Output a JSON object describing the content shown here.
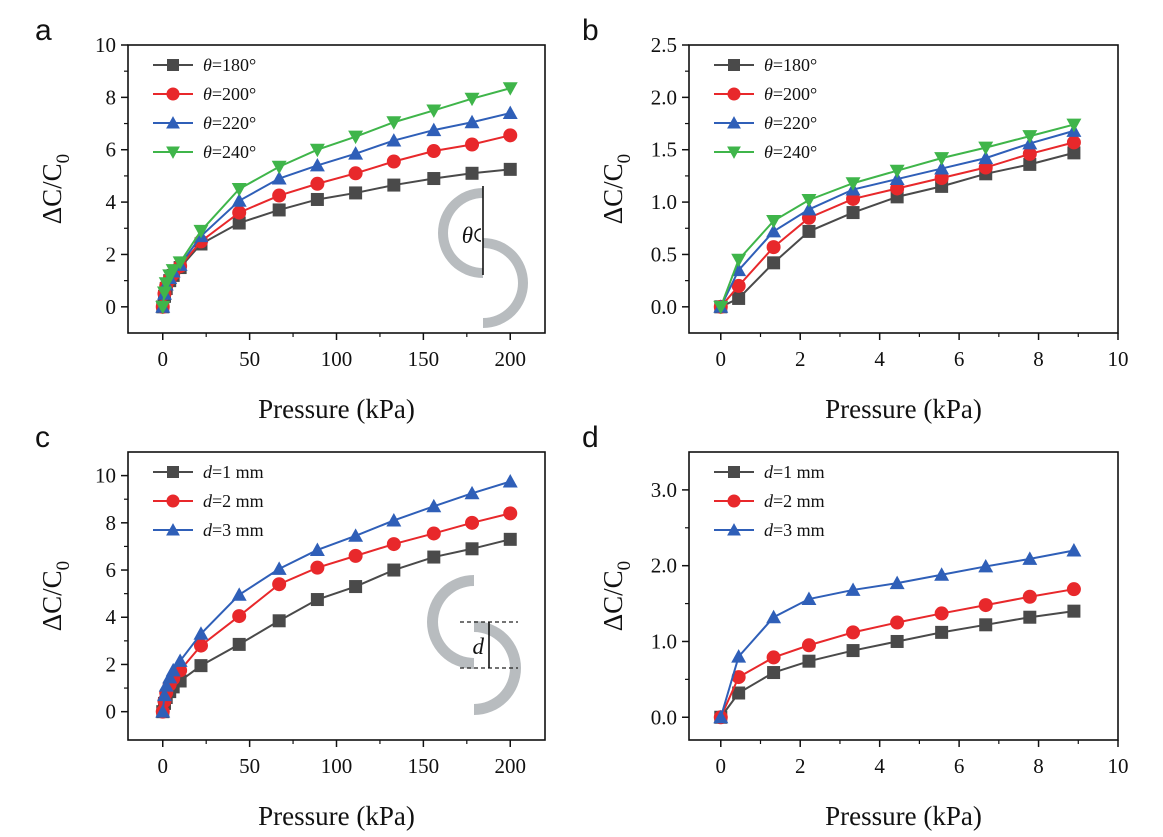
{
  "chart_data": [
    {
      "panel": "a",
      "type": "line",
      "xlabel": "Pressure (kPa)",
      "ylabel_main": "ΔC/C",
      "ylabel_sub": "0",
      "xlim": [
        -20,
        220
      ],
      "ylim": [
        -1,
        10
      ],
      "xticks": [
        0,
        50,
        100,
        150,
        200
      ],
      "xtick_labels": [
        "0",
        "50",
        "100",
        "150",
        "200"
      ],
      "yticks": [
        0,
        2,
        4,
        6,
        8,
        10
      ],
      "ytick_labels": [
        "0",
        "2",
        "4",
        "6",
        "8",
        "10"
      ],
      "legend_prefix": "θ",
      "legend_italic_prefix": true,
      "legend_position": "top-left",
      "series": [
        {
          "name": "θ=180°",
          "suffix": "=180°",
          "color": "#4a4a4a",
          "marker": "square",
          "x": [
            0,
            1,
            2,
            4,
            6,
            10,
            22,
            44,
            67,
            89,
            111,
            133,
            156,
            178,
            200
          ],
          "y": [
            0,
            0.4,
            0.7,
            1.0,
            1.2,
            1.5,
            2.4,
            3.2,
            3.7,
            4.1,
            4.35,
            4.65,
            4.9,
            5.1,
            5.25
          ]
        },
        {
          "name": "θ=200°",
          "suffix": "=200°",
          "color": "#e8282b",
          "marker": "circle",
          "x": [
            0,
            1,
            2,
            4,
            6,
            10,
            22,
            44,
            67,
            89,
            111,
            133,
            156,
            178,
            200
          ],
          "y": [
            0,
            0.5,
            0.8,
            1.05,
            1.25,
            1.55,
            2.5,
            3.6,
            4.25,
            4.7,
            5.1,
            5.55,
            5.95,
            6.2,
            6.55
          ]
        },
        {
          "name": "θ=220°",
          "suffix": "=220°",
          "color": "#2f5fb8",
          "marker": "triangle-up",
          "x": [
            0,
            1,
            2,
            4,
            6,
            10,
            22,
            44,
            67,
            89,
            111,
            133,
            156,
            178,
            200
          ],
          "y": [
            0,
            0.5,
            0.85,
            1.1,
            1.35,
            1.6,
            2.7,
            4.05,
            4.9,
            5.4,
            5.85,
            6.35,
            6.75,
            7.05,
            7.4
          ]
        },
        {
          "name": "θ=240°",
          "suffix": "=240°",
          "color": "#3fb54a",
          "marker": "triangle-down",
          "x": [
            0,
            1,
            2,
            4,
            6,
            10,
            22,
            44,
            67,
            89,
            111,
            133,
            156,
            178,
            200
          ],
          "y": [
            0,
            0.55,
            0.9,
            1.2,
            1.4,
            1.7,
            2.9,
            4.5,
            5.35,
            6.0,
            6.5,
            7.05,
            7.5,
            7.95,
            8.35
          ]
        }
      ],
      "inset": {
        "kind": "theta",
        "label": "θ"
      }
    },
    {
      "panel": "b",
      "type": "line",
      "xlabel": "Pressure (kPa)",
      "ylabel_main": "ΔC/C",
      "ylabel_sub": "0",
      "xlim": [
        -0.8,
        10
      ],
      "ylim": [
        -0.25,
        2.5
      ],
      "xticks": [
        0,
        2,
        4,
        6,
        8,
        10
      ],
      "xtick_labels": [
        "0",
        "2",
        "4",
        "6",
        "8",
        "10"
      ],
      "yticks": [
        0,
        0.5,
        1.0,
        1.5,
        2.0,
        2.5
      ],
      "ytick_labels": [
        "0.0",
        "0.5",
        "1.0",
        "1.5",
        "2.0",
        "2.5"
      ],
      "legend_prefix": "θ",
      "legend_italic_prefix": true,
      "legend_position": "top-left",
      "series": [
        {
          "name": "θ=180°",
          "suffix": "=180°",
          "color": "#4a4a4a",
          "marker": "square",
          "x": [
            0,
            0.45,
            1.33,
            2.22,
            3.33,
            4.44,
            5.56,
            6.67,
            7.78,
            8.89
          ],
          "y": [
            0,
            0.08,
            0.42,
            0.72,
            0.9,
            1.05,
            1.15,
            1.27,
            1.36,
            1.47
          ]
        },
        {
          "name": "θ=200°",
          "suffix": "=200°",
          "color": "#e8282b",
          "marker": "circle",
          "x": [
            0,
            0.45,
            1.33,
            2.22,
            3.33,
            4.44,
            5.56,
            6.67,
            7.78,
            8.89
          ],
          "y": [
            0,
            0.2,
            0.57,
            0.85,
            1.03,
            1.13,
            1.23,
            1.33,
            1.46,
            1.57
          ]
        },
        {
          "name": "θ=220°",
          "suffix": "=220°",
          "color": "#2f5fb8",
          "marker": "triangle-up",
          "x": [
            0,
            0.45,
            1.33,
            2.22,
            3.33,
            4.44,
            5.56,
            6.67,
            7.78,
            8.89
          ],
          "y": [
            0,
            0.35,
            0.72,
            0.93,
            1.12,
            1.22,
            1.32,
            1.42,
            1.56,
            1.68
          ]
        },
        {
          "name": "θ=240°",
          "suffix": "=240°",
          "color": "#3fb54a",
          "marker": "triangle-down",
          "x": [
            0,
            0.45,
            1.33,
            2.22,
            3.33,
            4.44,
            5.56,
            6.67,
            7.78,
            8.89
          ],
          "y": [
            0,
            0.45,
            0.82,
            1.02,
            1.18,
            1.3,
            1.42,
            1.52,
            1.63,
            1.74
          ]
        }
      ]
    },
    {
      "panel": "c",
      "type": "line",
      "xlabel": "Pressure (kPa)",
      "ylabel_main": "ΔC/C",
      "ylabel_sub": "0",
      "xlim": [
        -20,
        220
      ],
      "ylim": [
        -1.2,
        11
      ],
      "xticks": [
        0,
        50,
        100,
        150,
        200
      ],
      "xtick_labels": [
        "0",
        "50",
        "100",
        "150",
        "200"
      ],
      "yticks": [
        0,
        2,
        4,
        6,
        8,
        10
      ],
      "ytick_labels": [
        "0",
        "2",
        "4",
        "6",
        "8",
        "10"
      ],
      "legend_prefix": "d",
      "legend_italic_prefix": true,
      "legend_position": "top-left",
      "series": [
        {
          "name": "d=1 mm",
          "suffix": "=1 mm",
          "color": "#4a4a4a",
          "marker": "square",
          "x": [
            0,
            1,
            2,
            4,
            6,
            10,
            22,
            44,
            67,
            89,
            111,
            133,
            156,
            178,
            200
          ],
          "y": [
            0,
            0.35,
            0.6,
            0.85,
            1.05,
            1.3,
            1.95,
            2.85,
            3.85,
            4.75,
            5.3,
            6.0,
            6.55,
            6.9,
            7.3
          ]
        },
        {
          "name": "d=2 mm",
          "suffix": "=2 mm",
          "color": "#e8282b",
          "marker": "circle",
          "x": [
            0,
            1,
            2,
            4,
            6,
            10,
            22,
            44,
            67,
            89,
            111,
            133,
            156,
            178,
            200
          ],
          "y": [
            0,
            0.45,
            0.8,
            1.15,
            1.4,
            1.75,
            2.8,
            4.05,
            5.4,
            6.1,
            6.6,
            7.1,
            7.55,
            8.0,
            8.4
          ]
        },
        {
          "name": "d=3 mm",
          "suffix": "=3 mm",
          "color": "#2f5fb8",
          "marker": "triangle-up",
          "x": [
            0,
            1,
            2,
            4,
            6,
            10,
            22,
            44,
            67,
            89,
            111,
            133,
            156,
            178,
            200
          ],
          "y": [
            0,
            0.7,
            1.1,
            1.45,
            1.75,
            2.15,
            3.3,
            4.95,
            6.05,
            6.85,
            7.45,
            8.1,
            8.7,
            9.25,
            9.75
          ]
        }
      ],
      "inset": {
        "kind": "offset",
        "label": "d"
      }
    },
    {
      "panel": "d",
      "type": "line",
      "xlabel": "Pressure (kPa)",
      "ylabel_main": "ΔC/C",
      "ylabel_sub": "0",
      "xlim": [
        -0.8,
        10
      ],
      "ylim": [
        -0.3,
        3.5
      ],
      "xticks": [
        0,
        2,
        4,
        6,
        8,
        10
      ],
      "xtick_labels": [
        "0",
        "2",
        "4",
        "6",
        "8",
        "10"
      ],
      "yticks": [
        0,
        1.0,
        2.0,
        3.0
      ],
      "ytick_labels": [
        "0.0",
        "1.0",
        "2.0",
        "3.0"
      ],
      "legend_prefix": "d",
      "legend_italic_prefix": true,
      "legend_position": "top-left",
      "series": [
        {
          "name": "d=1 mm",
          "suffix": "=1 mm",
          "color": "#4a4a4a",
          "marker": "square",
          "x": [
            0,
            0.45,
            1.33,
            2.22,
            3.33,
            4.44,
            5.56,
            6.67,
            7.78,
            8.89
          ],
          "y": [
            0,
            0.32,
            0.59,
            0.74,
            0.88,
            1.0,
            1.12,
            1.22,
            1.32,
            1.4
          ]
        },
        {
          "name": "d=2 mm",
          "suffix": "=2 mm",
          "color": "#e8282b",
          "marker": "circle",
          "x": [
            0,
            0.45,
            1.33,
            2.22,
            3.33,
            4.44,
            5.56,
            6.67,
            7.78,
            8.89
          ],
          "y": [
            0,
            0.53,
            0.79,
            0.95,
            1.12,
            1.25,
            1.37,
            1.48,
            1.59,
            1.69
          ]
        },
        {
          "name": "d=3 mm",
          "suffix": "=3 mm",
          "color": "#2f5fb8",
          "marker": "triangle-up",
          "x": [
            0,
            0.45,
            1.33,
            2.22,
            3.33,
            4.44,
            5.56,
            6.67,
            7.78,
            8.89
          ],
          "y": [
            0,
            0.8,
            1.32,
            1.56,
            1.68,
            1.77,
            1.88,
            1.99,
            2.09,
            2.2
          ]
        }
      ]
    }
  ]
}
